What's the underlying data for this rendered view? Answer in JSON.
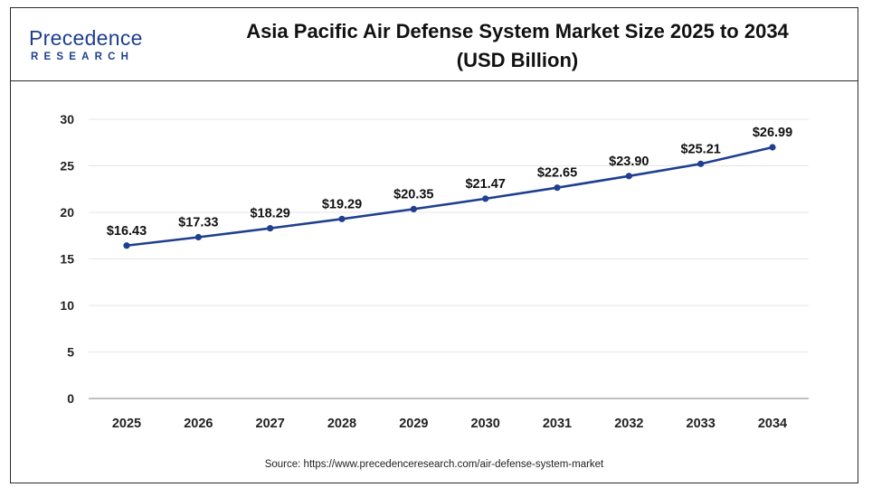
{
  "logo": {
    "name": "Precedence",
    "sub": "RESEARCH"
  },
  "source": "Source: https://www.precedenceresearch.com/air-defense-system-market",
  "colors": {
    "line": "#1f3f8f",
    "frame": "#2b2b2b",
    "grid": "#e6e6e6"
  },
  "chart_data": {
    "type": "line",
    "title": "Asia Pacific Air Defense System Market Size 2025 to 2034 (USD Billion)",
    "title_line1": "Asia Pacific Air Defense System Market Size 2025 to 2034",
    "title_line2": "(USD Billion)",
    "xlabel": "",
    "ylabel": "",
    "categories": [
      "2025",
      "2026",
      "2027",
      "2028",
      "2029",
      "2030",
      "2031",
      "2032",
      "2033",
      "2034"
    ],
    "series": [
      {
        "values": [
          16.43,
          17.33,
          18.29,
          19.29,
          20.35,
          21.47,
          22.65,
          23.9,
          25.21,
          26.99
        ]
      }
    ],
    "data_labels": [
      "$16.43",
      "$17.33",
      "$18.29",
      "$19.29",
      "$20.35",
      "$21.47",
      "$22.65",
      "$23.90",
      "$25.21",
      "$26.99"
    ],
    "ylim": [
      0,
      30
    ],
    "yticks": [
      "0",
      "5",
      "10",
      "15",
      "20",
      "25",
      "30"
    ],
    "grid": true,
    "legend": "none"
  }
}
